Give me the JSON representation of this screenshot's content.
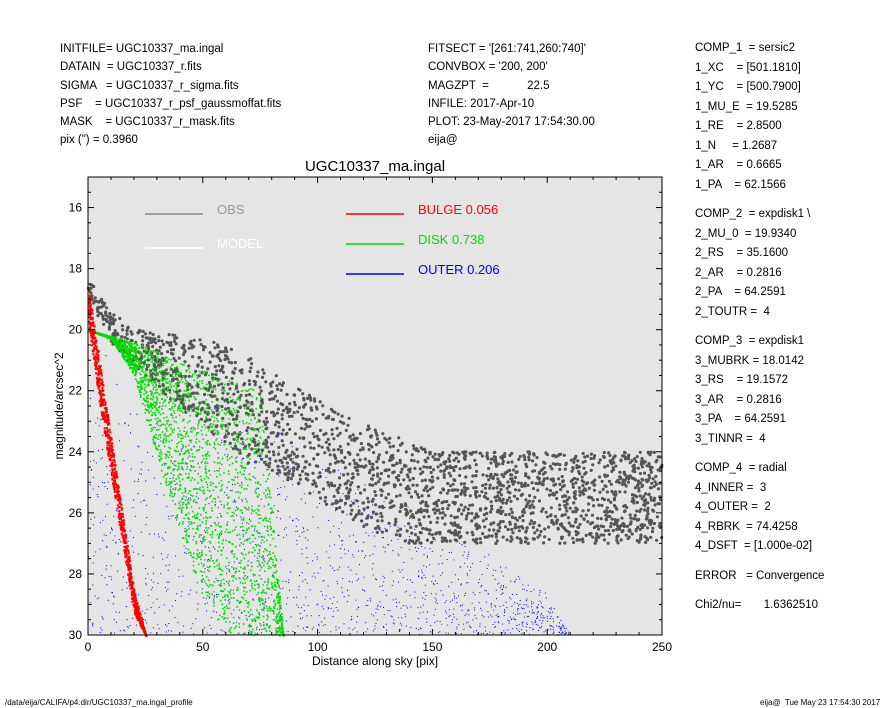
{
  "header_left": [
    {
      "key": "INITFILE=",
      "val": "UGC10337_ma.ingal"
    },
    {
      "key": "DATAIN  =",
      "val": "UGC10337_r.fits"
    },
    {
      "key": "SIGMA   =",
      "val": "UGC10337_r_sigma.fits"
    },
    {
      "key": "PSF    =",
      "val": "UGC10337_r_psf_gaussmoffat.fits"
    },
    {
      "key": "MASK    =",
      "val": "UGC10337_r_mask.fits"
    },
    {
      "key": "pix (\") =",
      "val": "0.3960"
    }
  ],
  "header_mid": [
    {
      "key": "FITSECT =",
      "val": "'[261:741,260:740]'"
    },
    {
      "key": "CONVBOX =",
      "val": "'200, 200'"
    },
    {
      "key": "MAGZPT  =",
      "val": "           22.5"
    },
    {
      "key": "INFILE:",
      "val": "2017-Apr-10"
    },
    {
      "key": "PLOT:",
      "val": "23-May-2017 17:54:30.00"
    },
    {
      "key": "",
      "val": "eija@"
    }
  ],
  "components": [
    {
      "lines": [
        "COMP_1  = sersic2",
        "1_XC    = [501.1810]",
        "1_YC    = [500.7900]",
        "1_MU_E  = 19.5285",
        "1_RE    = 2.8500",
        "1_N     = 1.2687",
        "1_AR    = 0.6665",
        "1_PA    = 62.1566"
      ]
    },
    {
      "lines": [
        "COMP_2  = expdisk1 \\",
        "2_MU_0  = 19.9340",
        "2_RS    = 35.1600",
        "2_AR    = 0.2816",
        "2_PA    = 64.2591",
        "2_TOUTR =  4"
      ]
    },
    {
      "lines": [
        "COMP_3  = expdisk1",
        "3_MUBRK = 18.0142",
        "3_RS    = 19.1572",
        "3_AR    = 0.2816",
        "3_PA    = 64.2591",
        "3_TINNR =  4"
      ]
    },
    {
      "lines": [
        "COMP_4  = radial",
        "4_INNER =  3",
        "4_OUTER =  2",
        "4_RBRK  = 74.4258",
        "4_DSFT  = [1.000e-02]"
      ]
    },
    {
      "lines": [
        "ERROR   = Convergence"
      ]
    },
    {
      "lines": [
        "Chi2/nu=       1.6362510"
      ]
    }
  ],
  "footer": {
    "left": "/data/eija/CALIFA/p4.dir/UGC10337_ma.ingal_profile",
    "right": "eija@  Tue May 23 17:54:30 2017"
  },
  "chart_data": {
    "type": "scatter",
    "title": "UGC10337_ma.ingal",
    "xlabel": "Distance along sky [pix]",
    "ylabel": "magnitude/arcsec^2",
    "xlim": [
      0,
      250
    ],
    "ylim": [
      30,
      15
    ],
    "xticks": [
      0,
      50,
      100,
      150,
      200,
      250
    ],
    "yticks": [
      16,
      18,
      20,
      22,
      24,
      26,
      28,
      30
    ],
    "legend": [
      {
        "name": "OBS",
        "color": "#8a8a8a",
        "text_color": "#9a9a9a"
      },
      {
        "name": "MODEL",
        "color": "#ffffff",
        "text_color": "#ffffff"
      },
      {
        "name": "BULGE",
        "value": "0.056",
        "color": "#ff0000",
        "text_color": "#ff0000"
      },
      {
        "name": "DISK",
        "value": "0.738",
        "color": "#00dd00",
        "text_color": "#00dd00"
      },
      {
        "name": "OUTER",
        "value": "0.206",
        "color": "#0000ff",
        "text_color": "#0000ff"
      }
    ],
    "series": [
      {
        "name": "OBS",
        "color": "#555555",
        "envelope": {
          "x": [
            0,
            10,
            20,
            30,
            40,
            50,
            60,
            70,
            80,
            100,
            120,
            140,
            150,
            160,
            180,
            200,
            250
          ],
          "y_bright": [
            18.3,
            19.4,
            20.0,
            20.1,
            20.2,
            20.3,
            20.5,
            20.9,
            21.4,
            22.3,
            23.0,
            23.7,
            24.0,
            24.0,
            24.0,
            24.0,
            24.0
          ],
          "y_faint": [
            19.0,
            20.5,
            21.2,
            21.9,
            22.6,
            23.2,
            23.7,
            24.4,
            24.6,
            25.6,
            26.5,
            27.0,
            27.0,
            27.0,
            27.0,
            27.0,
            27.0
          ]
        }
      },
      {
        "name": "BULGE",
        "color": "#ff0000",
        "band": {
          "x": [
            0,
            5,
            10,
            15,
            20,
            25
          ],
          "y_bright": [
            18.6,
            21.1,
            23.6,
            26.1,
            28.6,
            30
          ],
          "y_faint": [
            19.8,
            22.5,
            24.8,
            27.1,
            29.3,
            30
          ]
        }
      },
      {
        "name": "DISK",
        "color": "#00dd00",
        "band": {
          "x": [
            0,
            10,
            20,
            30,
            40,
            50,
            60,
            70,
            75,
            85
          ],
          "y_bright": [
            20.0,
            20.2,
            20.4,
            20.7,
            21.0,
            21.3,
            21.6,
            21.9,
            22.0,
            30
          ],
          "y_faint": [
            20.0,
            20.3,
            21.5,
            24.2,
            26.6,
            28.9,
            30,
            30,
            30,
            30
          ]
        }
      },
      {
        "name": "OUTER",
        "color": "#0000ff",
        "band": {
          "x": [
            0,
            20,
            40,
            60,
            75,
            100,
            125,
            150,
            175,
            200,
            210
          ],
          "y_bright": [
            20.2,
            21.0,
            21.8,
            22.4,
            22.8,
            23.9,
            25.0,
            26.1,
            27.2,
            28.6,
            30
          ],
          "y_faint": [
            30,
            30,
            30,
            30,
            30,
            30,
            30,
            30,
            30,
            30,
            30
          ]
        }
      }
    ]
  }
}
